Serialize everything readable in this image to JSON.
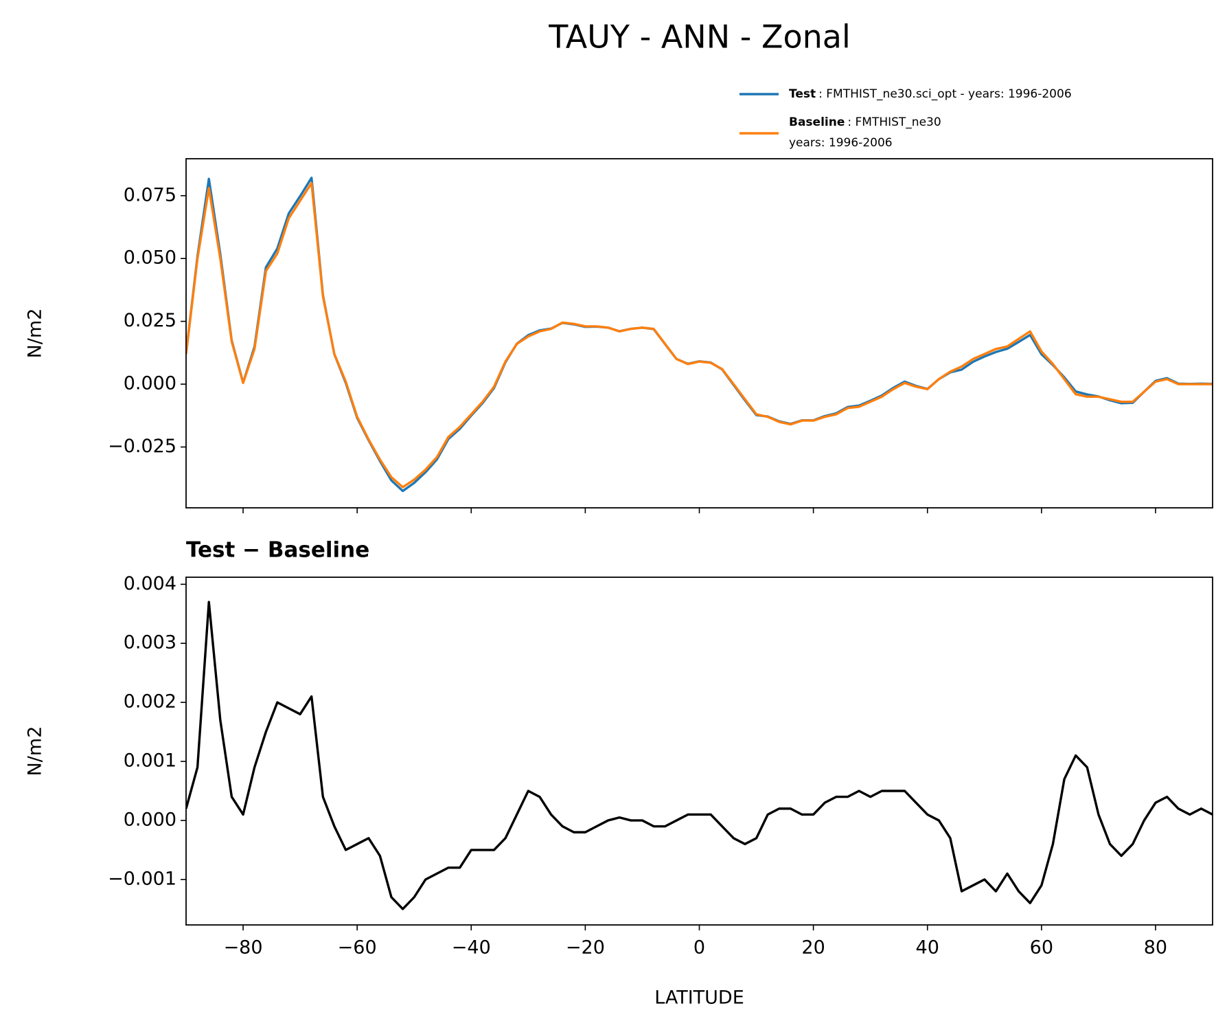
{
  "chart_data": [
    {
      "type": "line",
      "title": "TAUY - ANN - Zonal",
      "ylabel": "N/m2",
      "x": [
        -90,
        -88,
        -86,
        -84,
        -82,
        -80,
        -78,
        -76,
        -74,
        -72,
        -70,
        -68,
        -66,
        -64,
        -62,
        -60,
        -58,
        -56,
        -54,
        -52,
        -50,
        -48,
        -46,
        -44,
        -42,
        -40,
        -38,
        -36,
        -34,
        -32,
        -30,
        -28,
        -26,
        -24,
        -22,
        -20,
        -18,
        -16,
        -14,
        -12,
        -10,
        -8,
        -6,
        -4,
        -2,
        0,
        2,
        4,
        6,
        8,
        10,
        12,
        14,
        16,
        18,
        20,
        22,
        24,
        26,
        28,
        30,
        32,
        34,
        36,
        38,
        40,
        42,
        44,
        46,
        48,
        50,
        52,
        54,
        56,
        58,
        60,
        62,
        64,
        66,
        68,
        70,
        72,
        74,
        76,
        78,
        80,
        82,
        84,
        86,
        88,
        90
      ],
      "series": [
        {
          "name": "Test",
          "detail": [
            ": FMTHIST_ne30.sci_opt - years: 1996-2006"
          ],
          "color": "#1f77b4",
          "values": [
            0.0122,
            0.0509,
            0.0817,
            0.0517,
            0.0174,
            0.0006,
            0.0149,
            0.0465,
            0.054,
            0.0679,
            0.0748,
            0.0821,
            0.0354,
            0.0119,
            0.0005,
            -0.0134,
            -0.0223,
            -0.0306,
            -0.0383,
            -0.0425,
            -0.0393,
            -0.035,
            -0.0299,
            -0.0218,
            -0.0178,
            -0.0125,
            -0.0075,
            -0.0015,
            0.0087,
            0.0161,
            0.0195,
            0.0214,
            0.0221,
            0.0244,
            0.0238,
            0.0228,
            0.0229,
            0.0225,
            0.02105,
            0.022,
            0.0225,
            0.0219,
            0.0159,
            0.01,
            0.0081,
            0.0091,
            0.0086,
            0.0059,
            -0.0003,
            -0.0064,
            -0.0123,
            -0.0129,
            -0.0148,
            -0.0158,
            -0.0144,
            -0.0144,
            -0.0127,
            -0.0116,
            -0.0091,
            -0.0085,
            -0.0066,
            -0.0045,
            -0.0015,
            0.001,
            -0.0007,
            -0.0019,
            0.002,
            0.0047,
            0.0058,
            0.0089,
            0.011,
            0.0128,
            0.0141,
            0.0168,
            0.0196,
            0.0119,
            0.0076,
            0.0027,
            -0.0029,
            -0.0041,
            -0.0049,
            -0.0064,
            -0.0076,
            -0.0074,
            -0.003,
            0.0013,
            0.0024,
            0.0002,
            0.0001,
            0.0002,
            0.0001
          ]
        },
        {
          "name": "Baseline",
          "detail": [
            ": FMTHIST_ne30",
            "years: 1996-2006"
          ],
          "color": "#ff7f0e",
          "values": [
            0.012,
            0.05,
            0.078,
            0.05,
            0.017,
            0.0005,
            0.014,
            0.045,
            0.052,
            0.066,
            0.073,
            0.08,
            0.035,
            0.012,
            0.001,
            -0.013,
            -0.022,
            -0.03,
            -0.037,
            -0.041,
            -0.038,
            -0.034,
            -0.029,
            -0.021,
            -0.017,
            -0.012,
            -0.007,
            -0.001,
            0.009,
            0.016,
            0.019,
            0.021,
            0.022,
            0.0245,
            0.024,
            0.023,
            0.023,
            0.0225,
            0.021,
            0.022,
            0.0225,
            0.022,
            0.016,
            0.01,
            0.008,
            0.009,
            0.0085,
            0.006,
            0.0,
            -0.006,
            -0.012,
            -0.013,
            -0.015,
            -0.016,
            -0.0145,
            -0.0145,
            -0.013,
            -0.012,
            -0.0095,
            -0.009,
            -0.007,
            -0.005,
            -0.002,
            0.0005,
            -0.001,
            -0.002,
            0.002,
            0.005,
            0.007,
            0.01,
            0.012,
            0.014,
            0.015,
            0.018,
            0.021,
            0.013,
            0.008,
            0.002,
            -0.004,
            -0.005,
            -0.005,
            -0.006,
            -0.007,
            -0.007,
            -0.003,
            0.001,
            0.002,
            0.0,
            0.0,
            0.0,
            0.0
          ]
        }
      ],
      "xlim": [
        -90,
        90
      ],
      "xticks": [
        -80,
        -60,
        -40,
        -20,
        0,
        20,
        40,
        60,
        80
      ],
      "ylim": [
        -0.0492,
        0.0897
      ],
      "yticks": [
        {
          "value": -0.025,
          "label": "−0.025"
        },
        {
          "value": 0,
          "label": "0.000"
        },
        0.025,
        {
          "value": 0.05,
          "label": "0.050"
        },
        0.075
      ]
    },
    {
      "type": "line",
      "title": "Test − Baseline",
      "ylabel": "N/m2",
      "xlabel": "LATITUDE",
      "x": [
        -90,
        -88,
        -86,
        -84,
        -82,
        -80,
        -78,
        -76,
        -74,
        -72,
        -70,
        -68,
        -66,
        -64,
        -62,
        -60,
        -58,
        -56,
        -54,
        -52,
        -50,
        -48,
        -46,
        -44,
        -42,
        -40,
        -38,
        -36,
        -34,
        -32,
        -30,
        -28,
        -26,
        -24,
        -22,
        -20,
        -18,
        -16,
        -14,
        -12,
        -10,
        -8,
        -6,
        -4,
        -2,
        0,
        2,
        4,
        6,
        8,
        10,
        12,
        14,
        16,
        18,
        20,
        22,
        24,
        26,
        28,
        30,
        32,
        34,
        36,
        38,
        40,
        42,
        44,
        46,
        48,
        50,
        52,
        54,
        56,
        58,
        60,
        62,
        64,
        66,
        68,
        70,
        72,
        74,
        76,
        78,
        80,
        82,
        84,
        86,
        88,
        90
      ],
      "series": [
        {
          "color": "#000000",
          "values": [
            0.0002,
            0.0009,
            0.0037,
            0.0017,
            0.0004,
            0.0001,
            0.0009,
            0.0015,
            0.002,
            0.0019,
            0.0018,
            0.0021,
            0.0004,
            -0.0001,
            -0.0005,
            -0.0004,
            -0.0003,
            -0.0006,
            -0.0013,
            -0.0015,
            -0.0013,
            -0.001,
            -0.0009,
            -0.0008,
            -0.0008,
            -0.0005,
            -0.0005,
            -0.0005,
            -0.0003,
            0.0001,
            0.0005,
            0.0004,
            0.0001,
            -0.0001,
            -0.0002,
            -0.0002,
            -0.0001,
            0.0,
            5e-05,
            0.0,
            0.0,
            -0.0001,
            -0.0001,
            0.0,
            0.0001,
            0.0001,
            0.0001,
            -0.0001,
            -0.0003,
            -0.0004,
            -0.0003,
            0.0001,
            0.0002,
            0.0002,
            0.0001,
            0.0001,
            0.0003,
            0.0004,
            0.0004,
            0.0005,
            0.0004,
            0.0005,
            0.0005,
            0.0005,
            0.0003,
            0.0001,
            0.0,
            -0.0003,
            -0.0012,
            -0.0011,
            -0.001,
            -0.0012,
            -0.0009,
            -0.0012,
            -0.0014,
            -0.0011,
            -0.0004,
            0.0007,
            0.0011,
            0.0009,
            0.0001,
            -0.0004,
            -0.0006,
            -0.0004,
            0.0,
            0.0003,
            0.0004,
            0.0002,
            0.0001,
            0.0002,
            0.0001
          ]
        }
      ],
      "xlim": [
        -90,
        90
      ],
      "xticks": [
        {
          "value": -80,
          "label": "−80"
        },
        {
          "value": -60,
          "label": "−60"
        },
        {
          "value": -40,
          "label": "−40"
        },
        {
          "value": -20,
          "label": "−20"
        },
        0,
        20,
        40,
        60,
        80
      ],
      "ylim": [
        -0.00177,
        0.00412
      ],
      "yticks": [
        {
          "value": -0.001,
          "label": "−0.001"
        },
        {
          "value": 0,
          "label": "0.000"
        },
        0.001,
        0.002,
        0.003,
        0.004
      ]
    }
  ]
}
